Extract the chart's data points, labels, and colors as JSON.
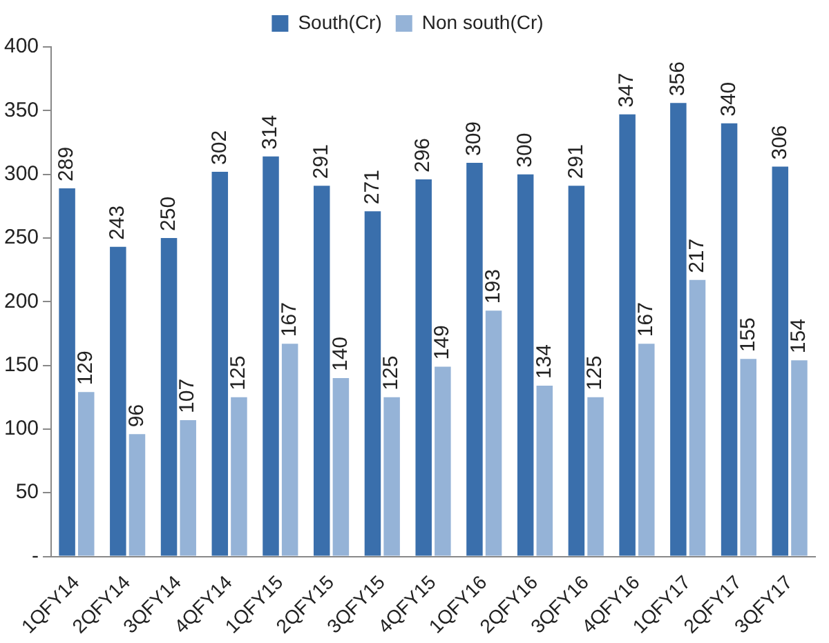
{
  "chart_data": {
    "type": "bar",
    "categories": [
      "1QFY14",
      "2QFY14",
      "3QFY14",
      "4QFY14",
      "1QFY15",
      "2QFY15",
      "3QFY15",
      "4QFY15",
      "1QFY16",
      "2QFY16",
      "3QFY16",
      "4QFY16",
      "1QFY17",
      "2QFY17",
      "3QFY17"
    ],
    "series": [
      {
        "name": "South(Cr)",
        "color": "#3a6fac",
        "values": [
          289,
          243,
          250,
          302,
          314,
          291,
          271,
          296,
          309,
          300,
          291,
          347,
          356,
          340,
          306
        ]
      },
      {
        "name": "Non south(Cr)",
        "color": "#95b3d7",
        "values": [
          129,
          96,
          107,
          125,
          167,
          140,
          125,
          149,
          193,
          134,
          125,
          167,
          217,
          155,
          154
        ]
      }
    ],
    "ylim": [
      0,
      400
    ],
    "yticks": [
      {
        "value": 0,
        "label": "-"
      },
      50,
      100,
      150,
      200,
      250,
      300,
      350,
      400
    ],
    "grid": false,
    "legend": "top",
    "data_labels": true
  }
}
